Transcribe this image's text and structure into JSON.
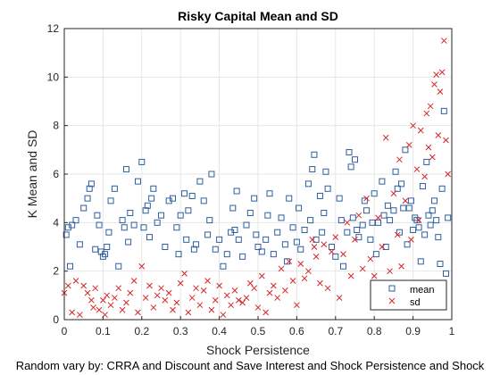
{
  "chart_data": {
    "type": "scatter",
    "title": "Risky Capital Mean and SD",
    "xlabel": "Shock Persistence",
    "ylabel": "K Mean and SD",
    "footnote": "Random vary by: CRRA and Discount and Save Interest and Shock Persistence and Shock",
    "xlim": [
      0,
      1
    ],
    "ylim": [
      0,
      12
    ],
    "xticks": [
      "0",
      "0.1",
      "0.2",
      "0.3",
      "0.4",
      "0.5",
      "0.6",
      "0.7",
      "0.8",
      "0.9",
      "1"
    ],
    "yticks": [
      "0",
      "2",
      "4",
      "6",
      "8",
      "10",
      "12"
    ],
    "grid": true,
    "legend_position": "bottom-right",
    "colors": {
      "mean": "#2e5f9e",
      "sd": "#d62728"
    },
    "series": [
      {
        "name": "mean",
        "marker": "square",
        "points": [
          [
            0.005,
            3.5
          ],
          [
            0.01,
            3.8
          ],
          [
            0.015,
            2.2
          ],
          [
            0.02,
            3.9
          ],
          [
            0.03,
            4.1
          ],
          [
            0.04,
            3.1
          ],
          [
            0.05,
            4.6
          ],
          [
            0.06,
            5.0
          ],
          [
            0.065,
            5.4
          ],
          [
            0.07,
            5.6
          ],
          [
            0.08,
            2.9
          ],
          [
            0.085,
            4.3
          ],
          [
            0.09,
            3.9
          ],
          [
            0.095,
            2.8
          ],
          [
            0.1,
            2.6
          ],
          [
            0.105,
            2.7
          ],
          [
            0.11,
            3.0
          ],
          [
            0.115,
            3.6
          ],
          [
            0.12,
            4.9
          ],
          [
            0.13,
            5.4
          ],
          [
            0.14,
            2.2
          ],
          [
            0.15,
            4.1
          ],
          [
            0.155,
            3.8
          ],
          [
            0.16,
            6.2
          ],
          [
            0.165,
            3.2
          ],
          [
            0.17,
            4.4
          ],
          [
            0.18,
            3.9
          ],
          [
            0.19,
            5.7
          ],
          [
            0.2,
            6.5
          ],
          [
            0.205,
            3.8
          ],
          [
            0.21,
            4.5
          ],
          [
            0.215,
            4.7
          ],
          [
            0.22,
            3.4
          ],
          [
            0.225,
            5.0
          ],
          [
            0.23,
            5.4
          ],
          [
            0.24,
            4.0
          ],
          [
            0.25,
            4.3
          ],
          [
            0.26,
            3.0
          ],
          [
            0.27,
            4.9
          ],
          [
            0.28,
            5.0
          ],
          [
            0.29,
            3.8
          ],
          [
            0.295,
            2.7
          ],
          [
            0.3,
            4.3
          ],
          [
            0.31,
            5.2
          ],
          [
            0.315,
            3.3
          ],
          [
            0.32,
            4.5
          ],
          [
            0.33,
            5.1
          ],
          [
            0.335,
            2.9
          ],
          [
            0.34,
            3.1
          ],
          [
            0.35,
            5.7
          ],
          [
            0.36,
            4.9
          ],
          [
            0.37,
            3.5
          ],
          [
            0.375,
            4.1
          ],
          [
            0.38,
            6.0
          ],
          [
            0.39,
            2.9
          ],
          [
            0.4,
            3.3
          ],
          [
            0.41,
            2.2
          ],
          [
            0.42,
            2.7
          ],
          [
            0.43,
            3.6
          ],
          [
            0.435,
            4.6
          ],
          [
            0.44,
            3.7
          ],
          [
            0.445,
            5.3
          ],
          [
            0.45,
            3.3
          ],
          [
            0.46,
            2.6
          ],
          [
            0.47,
            3.9
          ],
          [
            0.48,
            4.4
          ],
          [
            0.49,
            5.0
          ],
          [
            0.495,
            3.5
          ],
          [
            0.5,
            3.0
          ],
          [
            0.51,
            2.8
          ],
          [
            0.52,
            3.3
          ],
          [
            0.525,
            4.3
          ],
          [
            0.53,
            5.2
          ],
          [
            0.54,
            2.7
          ],
          [
            0.55,
            3.6
          ],
          [
            0.56,
            4.2
          ],
          [
            0.57,
            3.1
          ],
          [
            0.575,
            2.4
          ],
          [
            0.58,
            5.0
          ],
          [
            0.59,
            3.8
          ],
          [
            0.6,
            3.2
          ],
          [
            0.605,
            4.6
          ],
          [
            0.61,
            2.9
          ],
          [
            0.62,
            3.7
          ],
          [
            0.63,
            5.6
          ],
          [
            0.635,
            4.1
          ],
          [
            0.64,
            6.2
          ],
          [
            0.645,
            6.8
          ],
          [
            0.65,
            3.3
          ],
          [
            0.66,
            5.1
          ],
          [
            0.665,
            3.6
          ],
          [
            0.67,
            4.4
          ],
          [
            0.675,
            6.1
          ],
          [
            0.68,
            5.4
          ],
          [
            0.69,
            3.0
          ],
          [
            0.7,
            2.6
          ],
          [
            0.71,
            5.0
          ],
          [
            0.715,
            4.1
          ],
          [
            0.72,
            2.2
          ],
          [
            0.73,
            3.6
          ],
          [
            0.735,
            6.9
          ],
          [
            0.74,
            6.3
          ],
          [
            0.745,
            4.2
          ],
          [
            0.75,
            6.6
          ],
          [
            0.755,
            3.7
          ],
          [
            0.76,
            3.4
          ],
          [
            0.77,
            3.9
          ],
          [
            0.775,
            4.9
          ],
          [
            0.78,
            4.5
          ],
          [
            0.79,
            3.3
          ],
          [
            0.795,
            4.0
          ],
          [
            0.8,
            5.2
          ],
          [
            0.805,
            2.7
          ],
          [
            0.81,
            4.0
          ],
          [
            0.82,
            5.7
          ],
          [
            0.825,
            4.3
          ],
          [
            0.83,
            3.0
          ],
          [
            0.835,
            4.7
          ],
          [
            0.84,
            4.1
          ],
          [
            0.85,
            4.5
          ],
          [
            0.855,
            6.1
          ],
          [
            0.86,
            5.4
          ],
          [
            0.865,
            3.6
          ],
          [
            0.87,
            5.6
          ],
          [
            0.875,
            4.6
          ],
          [
            0.88,
            7.0
          ],
          [
            0.885,
            3.1
          ],
          [
            0.89,
            4.6
          ],
          [
            0.895,
            4.9
          ],
          [
            0.9,
            3.7
          ],
          [
            0.905,
            4.2
          ],
          [
            0.91,
            4.1
          ],
          [
            0.915,
            3.8
          ],
          [
            0.92,
            2.4
          ],
          [
            0.925,
            5.5
          ],
          [
            0.93,
            3.5
          ],
          [
            0.935,
            6.5
          ],
          [
            0.94,
            4.3
          ],
          [
            0.945,
            3.9
          ],
          [
            0.95,
            4.5
          ],
          [
            0.955,
            4.9
          ],
          [
            0.96,
            4.1
          ],
          [
            0.965,
            3.4
          ],
          [
            0.97,
            2.3
          ],
          [
            0.975,
            5.4
          ],
          [
            0.98,
            8.6
          ],
          [
            0.985,
            1.9
          ],
          [
            0.99,
            4.2
          ]
        ]
      },
      {
        "name": "sd",
        "marker": "x",
        "points": [
          [
            0.0,
            1.1
          ],
          [
            0.01,
            1.4
          ],
          [
            0.02,
            0.3
          ],
          [
            0.03,
            1.6
          ],
          [
            0.04,
            0.2
          ],
          [
            0.05,
            1.4
          ],
          [
            0.06,
            1.1
          ],
          [
            0.07,
            0.8
          ],
          [
            0.075,
            0.5
          ],
          [
            0.08,
            1.3
          ],
          [
            0.09,
            0.4
          ],
          [
            0.1,
            0.8
          ],
          [
            0.105,
            0.2
          ],
          [
            0.11,
            1.0
          ],
          [
            0.12,
            0.6
          ],
          [
            0.13,
            0.9
          ],
          [
            0.14,
            1.3
          ],
          [
            0.15,
            0.4
          ],
          [
            0.16,
            0.7
          ],
          [
            0.17,
            1.1
          ],
          [
            0.18,
            1.6
          ],
          [
            0.19,
            0.3
          ],
          [
            0.2,
            2.2
          ],
          [
            0.21,
            0.9
          ],
          [
            0.22,
            1.4
          ],
          [
            0.23,
            0.5
          ],
          [
            0.24,
            1.0
          ],
          [
            0.25,
            1.3
          ],
          [
            0.26,
            0.8
          ],
          [
            0.27,
            1.1
          ],
          [
            0.28,
            0.4
          ],
          [
            0.29,
            0.7
          ],
          [
            0.3,
            1.5
          ],
          [
            0.31,
            1.9
          ],
          [
            0.32,
            0.3
          ],
          [
            0.33,
            0.9
          ],
          [
            0.34,
            1.3
          ],
          [
            0.35,
            0.6
          ],
          [
            0.36,
            1.2
          ],
          [
            0.37,
            1.6
          ],
          [
            0.38,
            0.4
          ],
          [
            0.39,
            0.8
          ],
          [
            0.4,
            1.4
          ],
          [
            0.41,
            0.2
          ],
          [
            0.42,
            1.0
          ],
          [
            0.43,
            0.6
          ],
          [
            0.44,
            1.2
          ],
          [
            0.45,
            0.8
          ],
          [
            0.46,
            0.7
          ],
          [
            0.47,
            0.9
          ],
          [
            0.48,
            1.5
          ],
          [
            0.49,
            1.3
          ],
          [
            0.5,
            0.5
          ],
          [
            0.51,
            1.8
          ],
          [
            0.52,
            0.3
          ],
          [
            0.53,
            1.1
          ],
          [
            0.54,
            1.4
          ],
          [
            0.55,
            0.9
          ],
          [
            0.56,
            2.1
          ],
          [
            0.57,
            1.2
          ],
          [
            0.58,
            2.4
          ],
          [
            0.59,
            1.6
          ],
          [
            0.6,
            0.6
          ],
          [
            0.61,
            2.3
          ],
          [
            0.62,
            1.7
          ],
          [
            0.63,
            2.0
          ],
          [
            0.64,
            3.3
          ],
          [
            0.645,
            3.0
          ],
          [
            0.65,
            2.6
          ],
          [
            0.66,
            1.5
          ],
          [
            0.67,
            3.1
          ],
          [
            0.68,
            1.3
          ],
          [
            0.69,
            2.8
          ],
          [
            0.7,
            3.4
          ],
          [
            0.71,
            0.9
          ],
          [
            0.72,
            2.7
          ],
          [
            0.73,
            4.0
          ],
          [
            0.74,
            1.8
          ],
          [
            0.75,
            3.3
          ],
          [
            0.76,
            4.3
          ],
          [
            0.77,
            2.1
          ],
          [
            0.78,
            5.0
          ],
          [
            0.79,
            2.5
          ],
          [
            0.8,
            1.8
          ],
          [
            0.81,
            4.2
          ],
          [
            0.82,
            3.0
          ],
          [
            0.83,
            7.5
          ],
          [
            0.84,
            2.0
          ],
          [
            0.85,
            5.2
          ],
          [
            0.86,
            3.5
          ],
          [
            0.865,
            6.6
          ],
          [
            0.87,
            2.2
          ],
          [
            0.88,
            4.9
          ],
          [
            0.89,
            7.2
          ],
          [
            0.895,
            3.3
          ],
          [
            0.9,
            8.0
          ],
          [
            0.91,
            6.2
          ],
          [
            0.915,
            4.1
          ],
          [
            0.92,
            7.8
          ],
          [
            0.93,
            5.9
          ],
          [
            0.935,
            8.5
          ],
          [
            0.94,
            7.1
          ],
          [
            0.945,
            8.8
          ],
          [
            0.95,
            6.7
          ],
          [
            0.955,
            9.7
          ],
          [
            0.96,
            10.1
          ],
          [
            0.965,
            7.6
          ],
          [
            0.97,
            9.4
          ],
          [
            0.975,
            10.2
          ],
          [
            0.98,
            11.5
          ],
          [
            0.985,
            7.4
          ],
          [
            0.99,
            6.0
          ]
        ]
      }
    ]
  }
}
